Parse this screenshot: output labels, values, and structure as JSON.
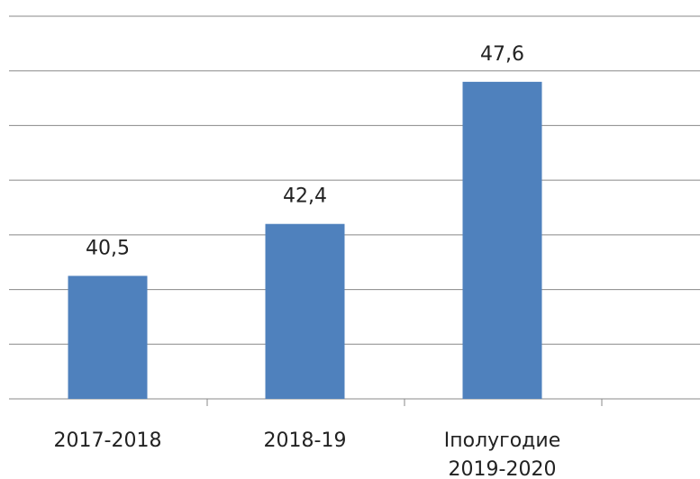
{
  "chart_data": {
    "type": "bar",
    "categories": [
      "2017-2018",
      "2018-19",
      "Iполугодие 2019-2020"
    ],
    "values": [
      40.5,
      42.4,
      47.6
    ],
    "value_labels": [
      "40,5",
      "42,4",
      "47,6"
    ],
    "color": "#4f81bd",
    "ylim": [
      36,
      50
    ],
    "yticks": [
      36,
      38,
      40,
      42,
      44,
      46,
      48,
      50
    ],
    "grid": true
  }
}
